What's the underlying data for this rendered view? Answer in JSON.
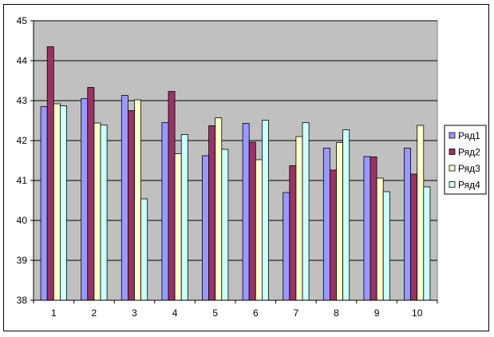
{
  "chart_data": {
    "type": "bar",
    "categories": [
      "1",
      "2",
      "3",
      "4",
      "5",
      "6",
      "7",
      "8",
      "9",
      "10"
    ],
    "series": [
      {
        "name": "Ряд1",
        "color": "#9999ff",
        "values": [
          42.85,
          43.05,
          43.13,
          42.45,
          41.62,
          42.43,
          40.7,
          41.81,
          41.6,
          41.81
        ]
      },
      {
        "name": "Ряд2",
        "color": "#993366",
        "values": [
          44.35,
          43.33,
          42.75,
          43.23,
          42.37,
          41.96,
          41.37,
          41.26,
          41.59,
          41.16
        ]
      },
      {
        "name": "Ряд3",
        "color": "#ffffcc",
        "values": [
          42.92,
          42.44,
          43.02,
          41.67,
          42.57,
          41.52,
          42.1,
          41.95,
          41.06,
          42.38
        ]
      },
      {
        "name": "Ряд4",
        "color": "#ccffff",
        "values": [
          42.87,
          42.39,
          40.54,
          42.15,
          41.78,
          42.51,
          42.45,
          42.27,
          40.72,
          40.84
        ]
      }
    ],
    "ylim": [
      38,
      45
    ],
    "yticks": [
      "38",
      "39",
      "40",
      "41",
      "42",
      "43",
      "44",
      "45"
    ],
    "grid": true,
    "plot_background": "#c0c0c0",
    "legend_position": "right",
    "title": "",
    "xlabel": "",
    "ylabel": ""
  }
}
